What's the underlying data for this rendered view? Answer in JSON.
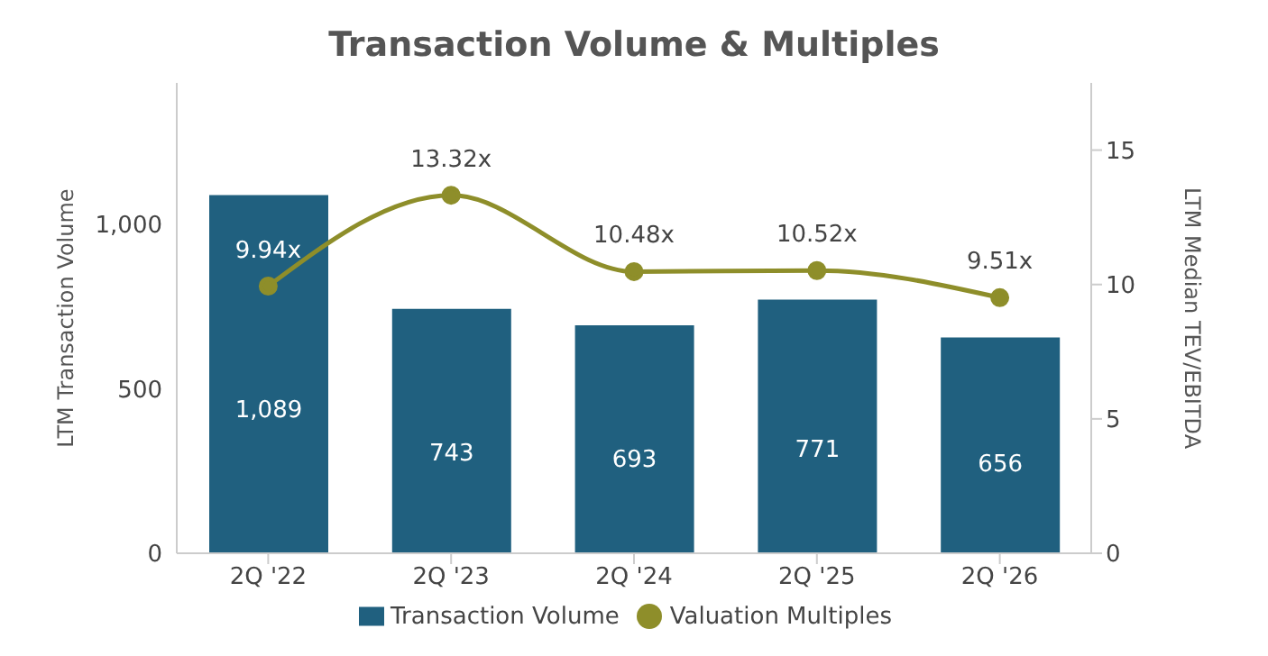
{
  "chart_data": {
    "type": "bar",
    "title": "Transaction Volume & Multiples",
    "ylabel": "LTM Transaction Volume",
    "y2label": "LTM Median TEV/EBITDA",
    "categories": [
      "2Q '22",
      "2Q '23",
      "2Q '24",
      "2Q '25",
      "2Q '26"
    ],
    "series": [
      {
        "name": "Transaction Volume",
        "color": "#20607f",
        "values": [
          1089,
          743,
          693,
          771,
          656
        ],
        "value_labels": [
          "1,089",
          "743",
          "693",
          "771",
          "656"
        ]
      },
      {
        "name": "Valuation Multiples",
        "type": "line",
        "axis": "y2",
        "color": "#8e8e2a",
        "values": [
          9.94,
          13.32,
          10.48,
          10.52,
          9.51
        ],
        "value_labels": [
          "9.94x",
          "13.32x",
          "10.48x",
          "10.52x",
          "9.51x"
        ]
      }
    ],
    "ylim": [
      0,
      1430
    ],
    "yticks": [
      0,
      {
        "value": 500,
        "label": "500"
      },
      {
        "value": 1000,
        "label": "1,000"
      }
    ],
    "y2lim": [
      0,
      17.5
    ],
    "y2ticks": [
      0,
      5,
      10,
      15
    ],
    "legend": "bottom",
    "marker": "circle",
    "line_style": "solid"
  }
}
